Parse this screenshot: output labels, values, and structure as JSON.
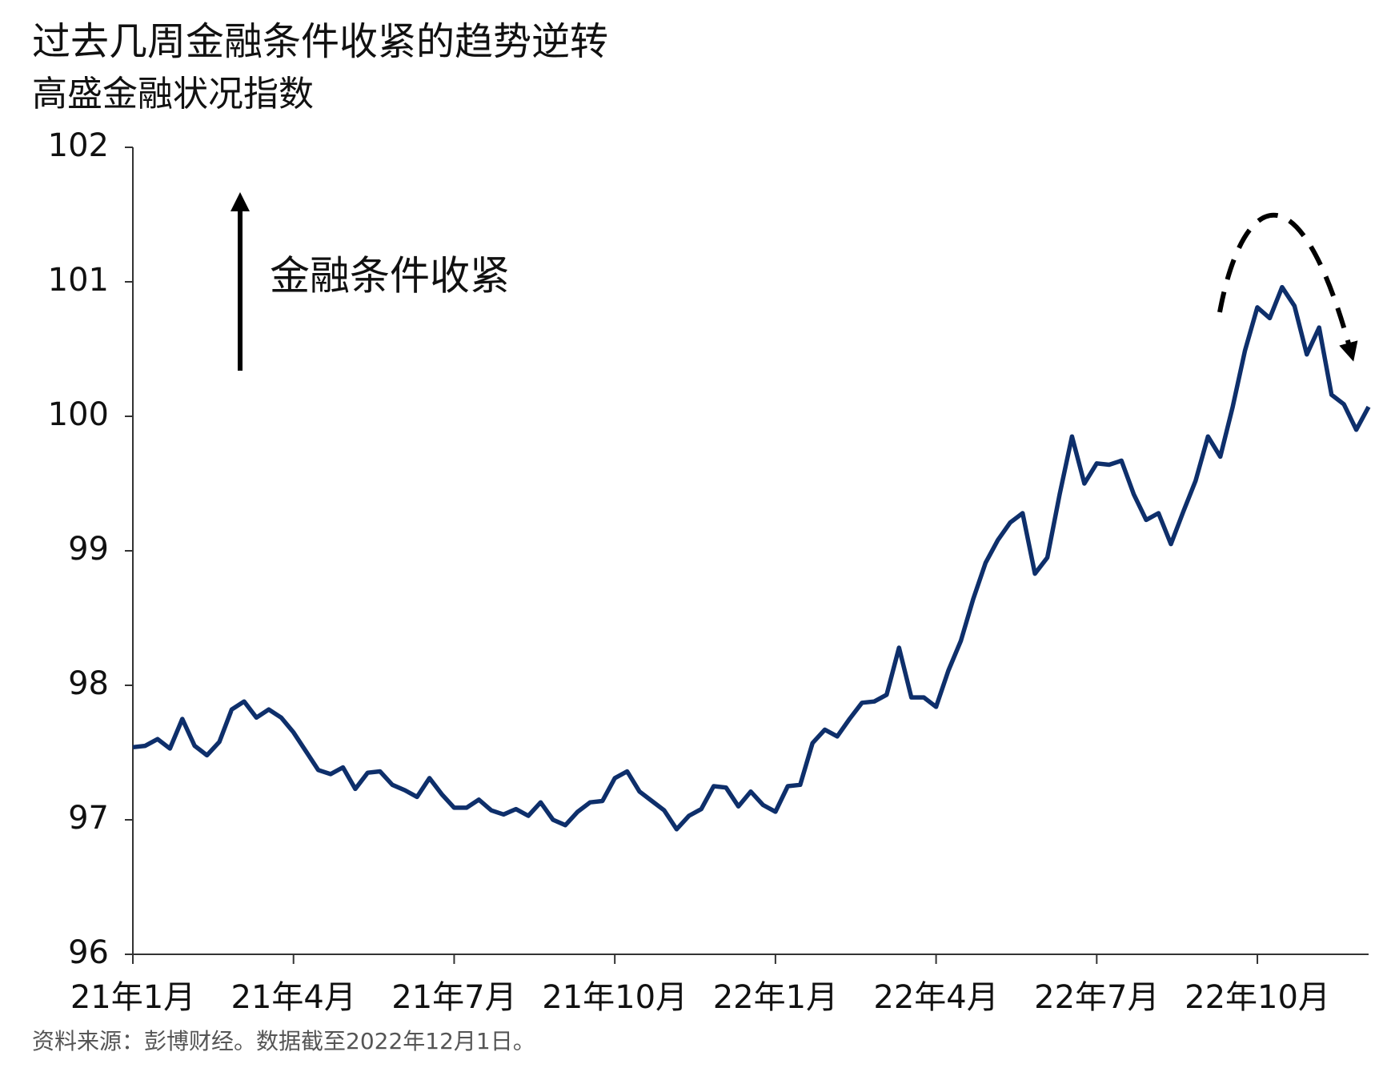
{
  "chart_data": {
    "type": "line",
    "title": "过去几周金融条件收紧的趋势逆转",
    "subtitle": "高盛金融状况指数",
    "annotation": "金融条件收紧",
    "source": "资料来源：彭博财经。数据截至2022年12月1日。",
    "color": "#0e2f6b",
    "categories": [
      "21年1月",
      null,
      null,
      null,
      null,
      null,
      null,
      null,
      null,
      null,
      null,
      null,
      null,
      "21年4月",
      null,
      null,
      null,
      null,
      null,
      null,
      null,
      null,
      null,
      null,
      null,
      null,
      "21年7月",
      null,
      null,
      null,
      null,
      null,
      null,
      null,
      null,
      null,
      null,
      null,
      null,
      "21年10月",
      null,
      null,
      null,
      null,
      null,
      null,
      null,
      null,
      null,
      null,
      null,
      null,
      "22年1月",
      null,
      null,
      null,
      null,
      null,
      null,
      null,
      null,
      null,
      null,
      null,
      null,
      "22年4月",
      null,
      null,
      null,
      null,
      null,
      null,
      null,
      null,
      null,
      null,
      null,
      null,
      "22年7月",
      null,
      null,
      null,
      null,
      null,
      null,
      null,
      null,
      null,
      null,
      null,
      null,
      "22年10月",
      null,
      null,
      null,
      null,
      null,
      null,
      null,
      null,
      null
    ],
    "values": [
      97.54,
      97.55,
      97.6,
      97.53,
      97.75,
      97.55,
      97.48,
      97.58,
      97.82,
      97.88,
      97.76,
      97.82,
      97.76,
      97.65,
      97.51,
      97.37,
      97.34,
      97.39,
      97.23,
      97.35,
      97.36,
      97.26,
      97.22,
      97.17,
      97.31,
      97.19,
      97.09,
      97.09,
      97.15,
      97.07,
      97.04,
      97.08,
      97.03,
      97.13,
      97.0,
      96.96,
      97.06,
      97.13,
      97.14,
      97.31,
      97.36,
      97.21,
      97.14,
      97.07,
      96.93,
      97.03,
      97.08,
      97.25,
      97.24,
      97.1,
      97.21,
      97.11,
      97.06,
      97.25,
      97.26,
      97.57,
      97.67,
      97.62,
      97.75,
      97.87,
      97.88,
      97.93,
      98.28,
      97.91,
      97.91,
      97.84,
      98.11,
      98.33,
      98.64,
      98.91,
      99.08,
      99.21,
      99.28,
      98.83,
      98.95,
      99.42,
      99.85,
      99.5,
      99.65,
      99.64,
      99.67,
      99.42,
      99.23,
      99.28,
      99.05,
      99.29,
      99.52,
      99.85,
      99.7,
      100.07,
      100.49,
      100.81,
      100.73,
      100.96,
      100.82,
      100.46,
      100.66,
      100.16,
      100.09,
      99.9,
      100.07
    ],
    "ylim": [
      96,
      102
    ],
    "yticks": [
      96,
      97,
      98,
      99,
      100,
      101,
      102
    ],
    "grid": false
  }
}
